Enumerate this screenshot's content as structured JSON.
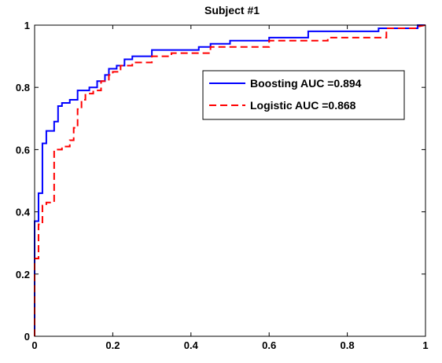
{
  "chart_data": {
    "type": "line",
    "title": "Subject #1",
    "xlabel": "",
    "ylabel": "",
    "xlim": [
      0,
      1
    ],
    "ylim": [
      0,
      1
    ],
    "xticks": [
      "0",
      "0.2",
      "0.4",
      "0.6",
      "0.8",
      "1"
    ],
    "yticks": [
      "0",
      "0.2",
      "0.4",
      "0.6",
      "0.8",
      "1"
    ],
    "grid": false,
    "legend_position": "upper-right",
    "series": [
      {
        "name": "Boosting AUC =0.894",
        "color": "#0000ff",
        "style": "solid",
        "x": [
          0,
          0,
          0.01,
          0.01,
          0.02,
          0.02,
          0.03,
          0.03,
          0.05,
          0.05,
          0.06,
          0.06,
          0.07,
          0.07,
          0.09,
          0.09,
          0.11,
          0.11,
          0.14,
          0.14,
          0.16,
          0.16,
          0.18,
          0.18,
          0.19,
          0.19,
          0.21,
          0.21,
          0.23,
          0.23,
          0.25,
          0.25,
          0.3,
          0.3,
          0.42,
          0.42,
          0.45,
          0.45,
          0.5,
          0.5,
          0.6,
          0.6,
          0.7,
          0.7,
          0.88,
          0.88,
          0.98,
          0.98,
          1
        ],
        "y": [
          0,
          0.37,
          0.37,
          0.46,
          0.46,
          0.62,
          0.62,
          0.66,
          0.66,
          0.69,
          0.69,
          0.74,
          0.74,
          0.75,
          0.75,
          0.76,
          0.76,
          0.79,
          0.79,
          0.8,
          0.8,
          0.82,
          0.82,
          0.84,
          0.84,
          0.86,
          0.86,
          0.87,
          0.87,
          0.89,
          0.89,
          0.9,
          0.9,
          0.92,
          0.92,
          0.93,
          0.93,
          0.94,
          0.94,
          0.95,
          0.95,
          0.96,
          0.96,
          0.98,
          0.98,
          0.99,
          0.99,
          1,
          1
        ]
      },
      {
        "name": "Logistic AUC =0.868",
        "color": "#ff0000",
        "style": "dashed",
        "x": [
          0,
          0,
          0.01,
          0.01,
          0.02,
          0.02,
          0.03,
          0.03,
          0.05,
          0.05,
          0.07,
          0.07,
          0.09,
          0.09,
          0.1,
          0.1,
          0.11,
          0.11,
          0.12,
          0.12,
          0.13,
          0.13,
          0.15,
          0.15,
          0.17,
          0.17,
          0.19,
          0.19,
          0.2,
          0.2,
          0.22,
          0.22,
          0.25,
          0.25,
          0.3,
          0.3,
          0.35,
          0.35,
          0.45,
          0.45,
          0.6,
          0.6,
          0.75,
          0.75,
          0.9,
          0.9,
          0.98,
          0.98,
          1
        ],
        "y": [
          0,
          0.25,
          0.25,
          0.36,
          0.36,
          0.42,
          0.42,
          0.43,
          0.43,
          0.6,
          0.6,
          0.61,
          0.61,
          0.63,
          0.63,
          0.67,
          0.67,
          0.73,
          0.73,
          0.76,
          0.76,
          0.78,
          0.78,
          0.79,
          0.79,
          0.82,
          0.82,
          0.84,
          0.84,
          0.85,
          0.85,
          0.87,
          0.87,
          0.88,
          0.88,
          0.9,
          0.9,
          0.91,
          0.91,
          0.93,
          0.93,
          0.95,
          0.95,
          0.96,
          0.96,
          0.99,
          0.99,
          0.995,
          1
        ]
      }
    ]
  }
}
